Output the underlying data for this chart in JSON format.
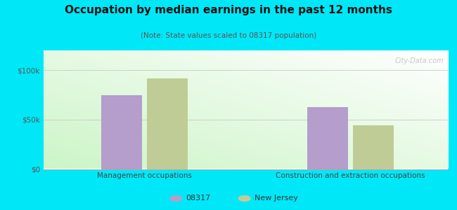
{
  "title": "Occupation by median earnings in the past 12 months",
  "subtitle": "(Note: State values scaled to 08317 population)",
  "categories": [
    "Management occupations",
    "Construction and extraction occupations"
  ],
  "series_08317": [
    75000,
    63000
  ],
  "series_nj": [
    92000,
    44000
  ],
  "color_08317": "#b59dcc",
  "color_nj": "#c0cc96",
  "yticks": [
    0,
    50000,
    100000
  ],
  "ytick_labels": [
    "$0",
    "$50k",
    "$100k"
  ],
  "ymax": 120000,
  "bg_outer": "#00e8f8",
  "watermark": "City-Data.com",
  "bar_width": 0.32
}
